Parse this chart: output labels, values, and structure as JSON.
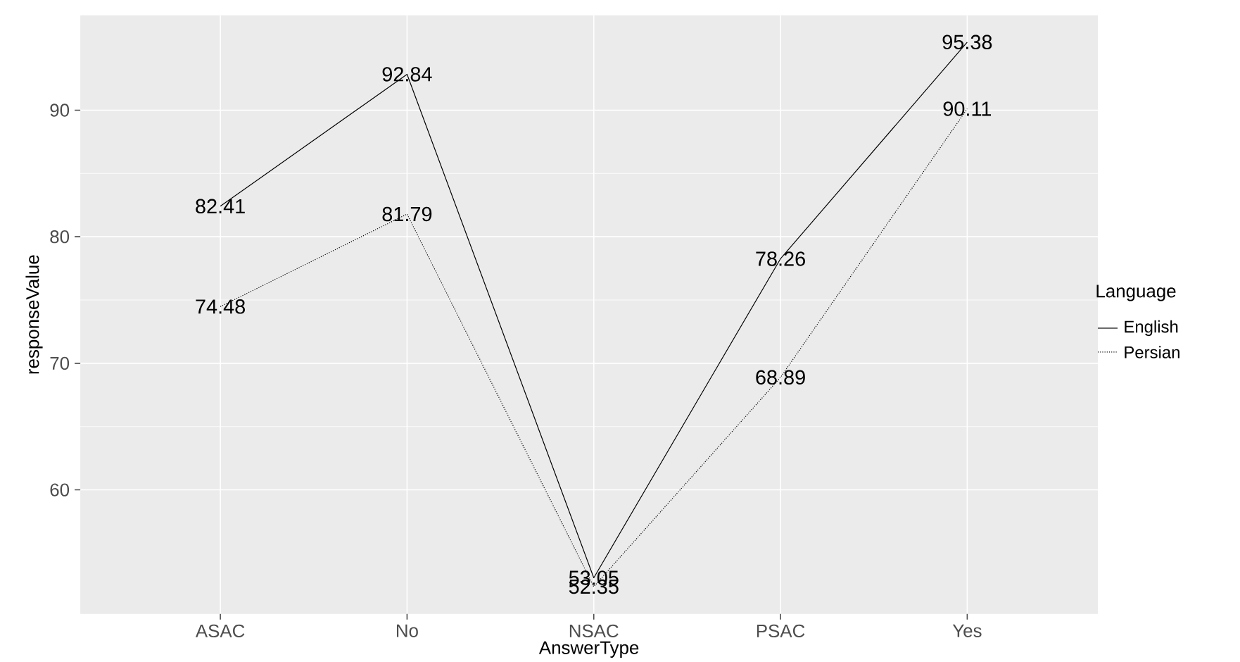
{
  "chart_data": {
    "type": "line",
    "xlabel": "AnswerType",
    "ylabel": "responseValue",
    "legend_title": "Language",
    "categories": [
      "ASAC",
      "No",
      "NSAC",
      "PSAC",
      "Yes"
    ],
    "series": [
      {
        "name": "English",
        "color": "#000000",
        "line_style": "solid",
        "values": [
          82.41,
          92.84,
          53.05,
          78.26,
          95.38
        ],
        "value_labels": [
          "82.41",
          "92.84",
          "53.05",
          "78.26",
          "95.38"
        ]
      },
      {
        "name": "Persian",
        "color": "#000000",
        "line_style": "dotted",
        "values": [
          74.48,
          81.79,
          52.35,
          68.89,
          90.11
        ],
        "value_labels": [
          "74.48",
          "81.79",
          "52.35",
          "68.89",
          "90.11"
        ]
      }
    ],
    "ylim": [
      50.2,
      97.5
    ],
    "yticks": [
      60,
      70,
      80,
      90
    ],
    "grid": true,
    "legend": "right",
    "marker": "none"
  }
}
